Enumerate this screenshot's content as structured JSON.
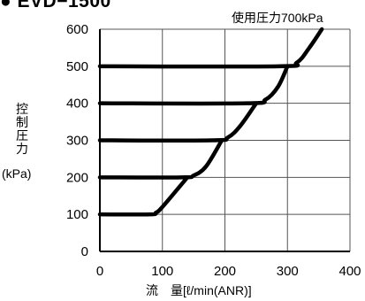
{
  "header": {
    "title": "● EVD−1500",
    "pressure_note": "使用圧力700kPa"
  },
  "chart_data": {
    "type": "line",
    "title": "● EVD−1500",
    "annotation": "使用圧力700kPa",
    "xlabel": "流　量[ℓ/min(ANR)]",
    "ylabel": "控\n制\n圧\n力",
    "yunit": "(kPa)",
    "xlim": [
      0,
      400
    ],
    "ylim": [
      0,
      600
    ],
    "xticks": [
      0,
      100,
      200,
      300,
      400
    ],
    "yticks": [
      0,
      100,
      200,
      300,
      400,
      500,
      600
    ],
    "grid": true,
    "series": [
      {
        "x": [
          0,
          80,
          90,
          100,
          140
        ],
        "y": [
          100,
          100,
          105,
          120,
          200
        ]
      },
      {
        "x": [
          0,
          130,
          150,
          170,
          195
        ],
        "y": [
          200,
          200,
          205,
          230,
          300
        ]
      },
      {
        "x": [
          0,
          180,
          205,
          225,
          250
        ],
        "y": [
          300,
          300,
          308,
          340,
          400
        ]
      },
      {
        "x": [
          0,
          235,
          265,
          285,
          300
        ],
        "y": [
          400,
          400,
          410,
          445,
          500
        ]
      },
      {
        "x": [
          0,
          285,
          315,
          335,
          355
        ],
        "y": [
          500,
          500,
          510,
          550,
          600
        ]
      }
    ]
  }
}
